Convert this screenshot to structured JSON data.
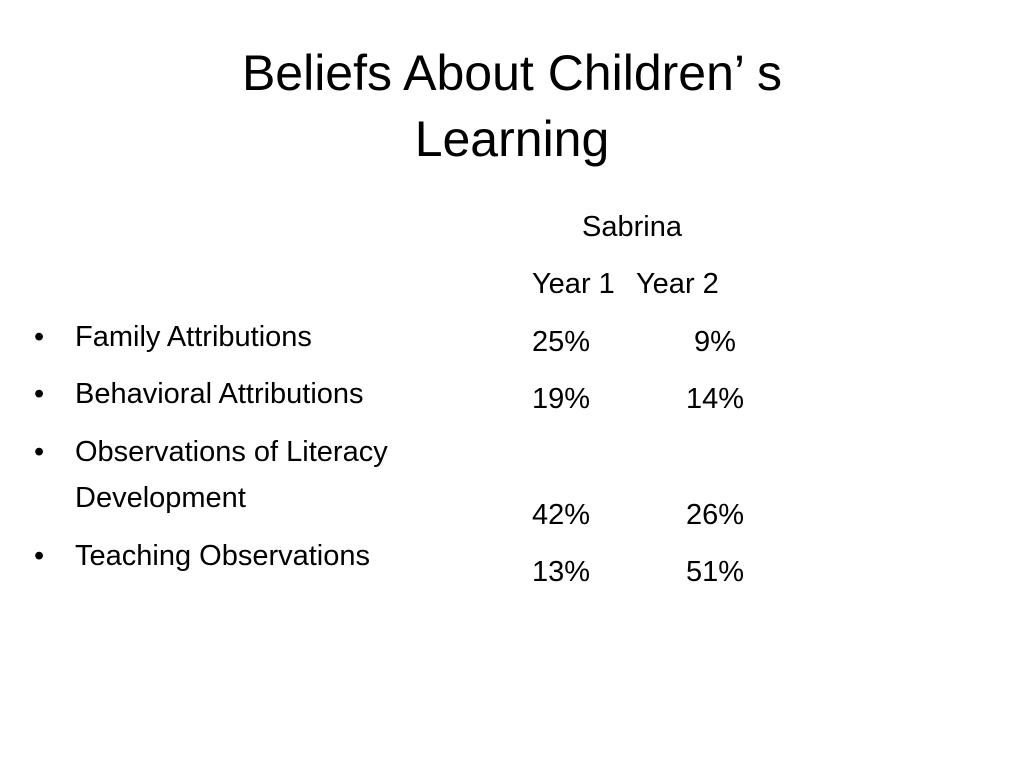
{
  "title": "Beliefs About Children’ s Learning",
  "bullets": [
    "Family Attributions",
    "Behavioral Attributions",
    "Observations of Literacy Development",
    "Teaching Observations"
  ],
  "table": {
    "header": "Sabrina",
    "columns": [
      "Year 1",
      "Year 2"
    ],
    "rows": [
      [
        "25%",
        "9%"
      ],
      [
        "19%",
        "14%"
      ],
      [
        "42%",
        "26%"
      ],
      [
        "13%",
        "51%"
      ]
    ]
  }
}
